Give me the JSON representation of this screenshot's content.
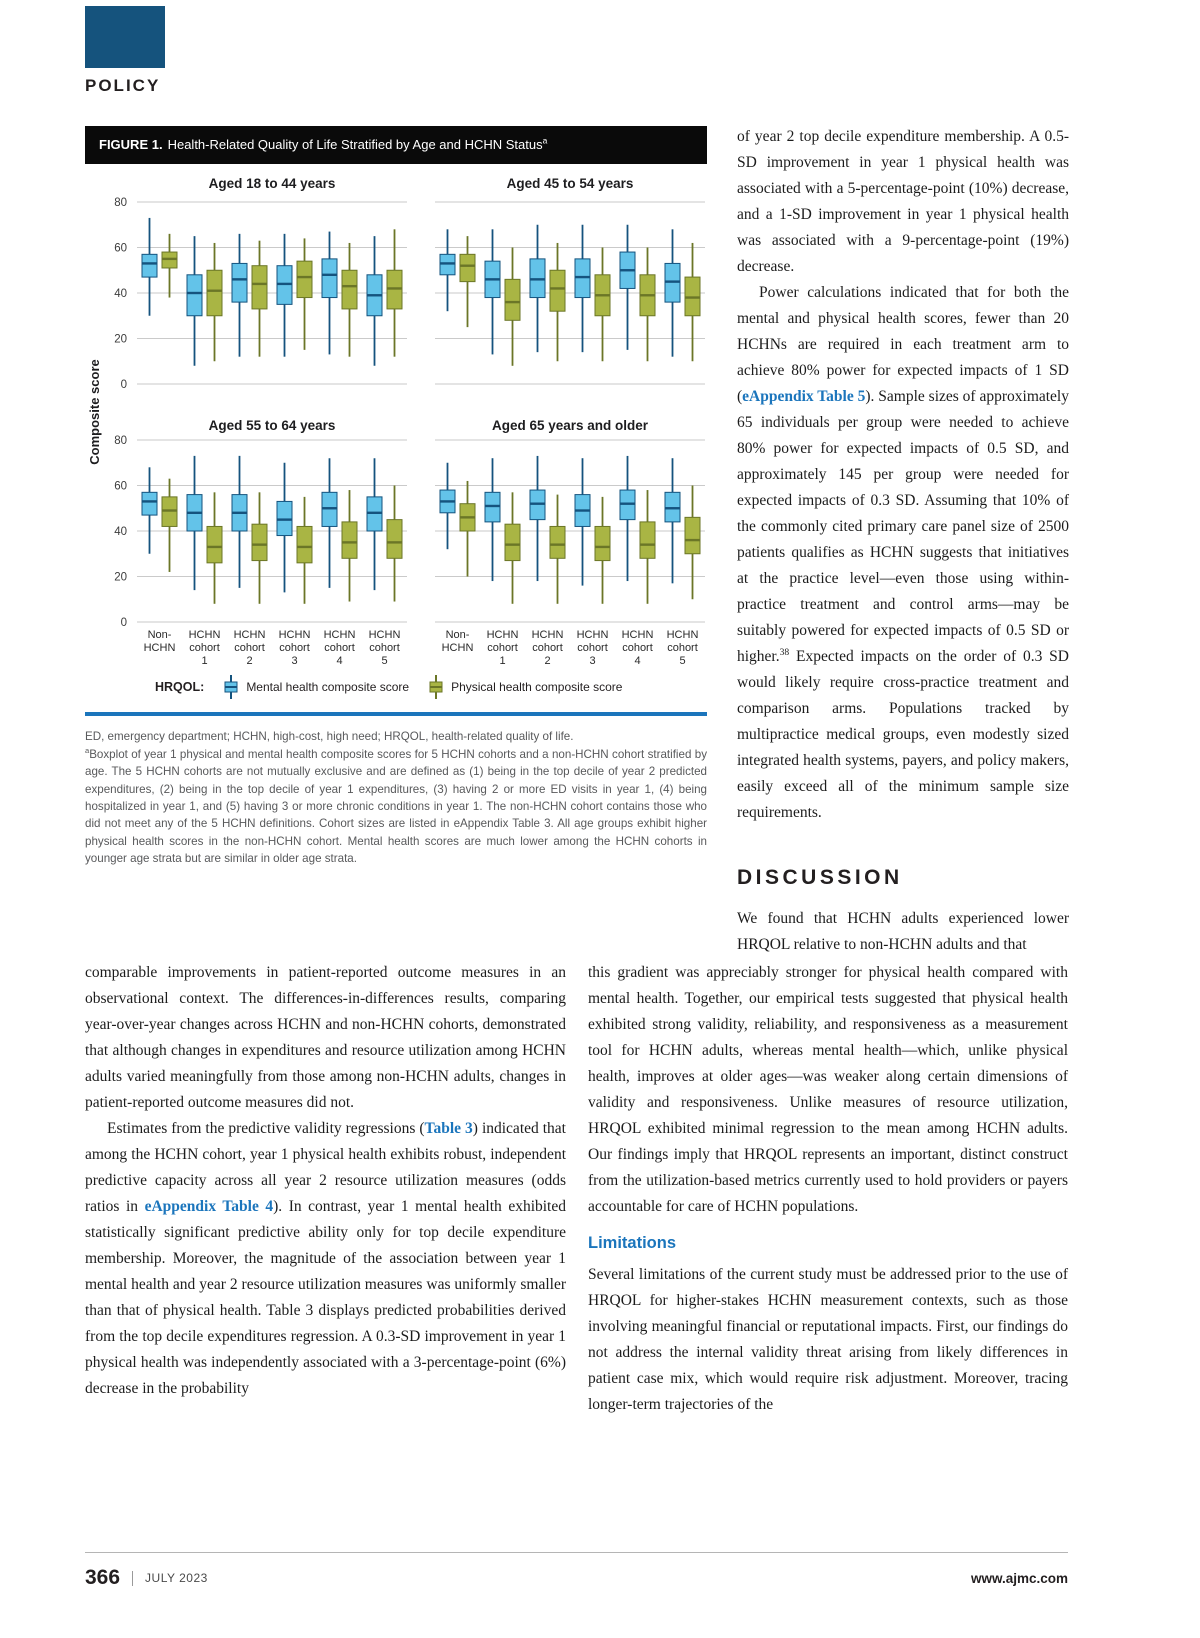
{
  "page": {
    "section_label": "POLICY",
    "footer": {
      "page_number": "366",
      "issue_date": "JULY 2023",
      "website": "www.ajmc.com"
    }
  },
  "figure": {
    "label": "FIGURE 1.",
    "title_segments": [
      {
        "t": "Health-Related Quality of Life Stratified by Age and HCHN Status"
      },
      {
        "t": "a",
        "sup": true
      }
    ],
    "legend": {
      "prefix": "HRQOL:",
      "mental_label": "Mental health composite score",
      "physical_label": "Physical health composite score"
    },
    "caption": {
      "abbreviations": "ED, emergency department; HCHN, high-cost, high need; HRQOL, health-related quality of life.",
      "note_segments": [
        {
          "t": "a",
          "sup": true
        },
        {
          "t": "Boxplot of year 1 physical and mental health composite scores for 5 HCHN cohorts and a non-HCHN cohort stratified by age. The 5 HCHN cohorts are not mutually exclusive and are defined as (1) being in the top decile of year 2 predicted expenditures, (2) being in the top decile of year 1 expenditures, (3) having 2 or more ED visits in year 1, (4) being hospitalized in year 1, and (5) having 3 or more chronic conditions in year 1. The non-HCHN cohort contains those who did not meet any of the 5 HCHN definitions. Cohort sizes are listed in eAppendix Table 3. All age groups exhibit higher physical health scores in the non-HCHN cohort. Mental health scores are much lower among the HCHN cohorts in younger age strata but are similar in older age strata."
        }
      ]
    }
  },
  "chart_data": {
    "type": "boxplot",
    "title": "Health-Related Quality of Life Stratified by Age and HCHN Status",
    "ylabel": "Composite score",
    "xlabel": "",
    "ylim": [
      0,
      80
    ],
    "yticks": [
      0,
      20,
      40,
      60,
      80
    ],
    "grid": true,
    "legend_position": "bottom",
    "stats_order": [
      "min",
      "q1",
      "median",
      "q3",
      "max"
    ],
    "series": [
      "Mental health composite score",
      "Physical health composite score"
    ],
    "colors": {
      "mental": {
        "fill": "#63C3E9",
        "dark": "#15537E"
      },
      "physical": {
        "fill": "#A9B544",
        "dark": "#6B7627"
      }
    },
    "categories": [
      "Non-HCHN",
      "HCHN cohort 1",
      "HCHN cohort 2",
      "HCHN cohort 3",
      "HCHN cohort 4",
      "HCHN cohort 5"
    ],
    "category_label_lines": [
      [
        "Non-",
        "HCHN"
      ],
      [
        "HCHN",
        "cohort",
        "1"
      ],
      [
        "HCHN",
        "cohort",
        "2"
      ],
      [
        "HCHN",
        "cohort",
        "3"
      ],
      [
        "HCHN",
        "cohort",
        "4"
      ],
      [
        "HCHN",
        "cohort",
        "5"
      ]
    ],
    "panels": [
      {
        "title": "Aged 18 to 44 years",
        "mental": [
          [
            30,
            47,
            53,
            57,
            73
          ],
          [
            8,
            30,
            40,
            48,
            65
          ],
          [
            12,
            36,
            46,
            53,
            66
          ],
          [
            12,
            35,
            44,
            52,
            66
          ],
          [
            13,
            38,
            48,
            55,
            67
          ],
          [
            8,
            30,
            39,
            48,
            65
          ]
        ],
        "physical": [
          [
            38,
            51,
            55,
            58,
            66
          ],
          [
            10,
            30,
            41,
            50,
            62
          ],
          [
            12,
            33,
            44,
            52,
            63
          ],
          [
            15,
            38,
            47,
            54,
            64
          ],
          [
            12,
            33,
            43,
            50,
            62
          ],
          [
            12,
            33,
            42,
            50,
            68
          ]
        ]
      },
      {
        "title": "Aged 45 to 54 years",
        "mental": [
          [
            32,
            48,
            53,
            57,
            68
          ],
          [
            13,
            38,
            46,
            54,
            68
          ],
          [
            14,
            38,
            46,
            55,
            70
          ],
          [
            14,
            38,
            47,
            55,
            70
          ],
          [
            15,
            42,
            50,
            58,
            70
          ],
          [
            12,
            36,
            45,
            53,
            68
          ]
        ],
        "physical": [
          [
            25,
            45,
            52,
            57,
            65
          ],
          [
            8,
            28,
            36,
            46,
            60
          ],
          [
            10,
            32,
            42,
            50,
            62
          ],
          [
            10,
            30,
            39,
            48,
            60
          ],
          [
            10,
            30,
            39,
            48,
            60
          ],
          [
            10,
            30,
            38,
            47,
            62
          ]
        ]
      },
      {
        "title": "Aged 55 to 64 years",
        "mental": [
          [
            30,
            47,
            53,
            57,
            68
          ],
          [
            14,
            40,
            48,
            56,
            73
          ],
          [
            15,
            40,
            48,
            56,
            73
          ],
          [
            13,
            38,
            45,
            53,
            70
          ],
          [
            15,
            42,
            50,
            57,
            72
          ],
          [
            14,
            40,
            48,
            55,
            72
          ]
        ],
        "physical": [
          [
            22,
            42,
            49,
            55,
            63
          ],
          [
            8,
            26,
            33,
            42,
            57
          ],
          [
            8,
            27,
            34,
            43,
            57
          ],
          [
            8,
            26,
            33,
            42,
            55
          ],
          [
            9,
            28,
            35,
            44,
            58
          ],
          [
            9,
            28,
            35,
            45,
            60
          ]
        ]
      },
      {
        "title": "Aged 65 years and older",
        "mental": [
          [
            32,
            48,
            53,
            58,
            70
          ],
          [
            18,
            44,
            51,
            57,
            72
          ],
          [
            18,
            45,
            52,
            58,
            73
          ],
          [
            16,
            42,
            49,
            56,
            72
          ],
          [
            18,
            45,
            52,
            58,
            73
          ],
          [
            17,
            44,
            50,
            57,
            72
          ]
        ],
        "physical": [
          [
            20,
            40,
            46,
            52,
            62
          ],
          [
            8,
            27,
            34,
            43,
            57
          ],
          [
            8,
            28,
            34,
            42,
            56
          ],
          [
            8,
            27,
            33,
            42,
            55
          ],
          [
            8,
            28,
            34,
            44,
            58
          ],
          [
            10,
            30,
            36,
            46,
            60
          ]
        ]
      }
    ]
  },
  "text": {
    "discussion_heading": "DISCUSSION",
    "limitations_heading": "Limitations",
    "top_right": {
      "p1": "of year 2 top decile expenditure membership. A 0.5-SD improvement in year 1 physical health was associated with a 5-percentage-point (10%) decrease, and a 1-SD improvement in year 1 physical health was associated with a 9-percentage-point (19%) decrease.",
      "p2_segments": [
        {
          "t": "Power calculations indicated that for both the mental and physical health scores, fewer than 20 HCHNs are required in each treatment arm to achieve 80% power for expected impacts of 1 SD ("
        },
        {
          "t": "eAppendix Table 5",
          "link": true
        },
        {
          "t": "). Sample sizes of approximately 65 individuals per group were needed to achieve 80% power for expected impacts of 0.5 SD, and approximately 145 per group were needed for expected impacts of 0.3 SD. Assuming that 10% of the commonly cited primary care panel size of 2500 patients qualifies as HCHN suggests that initiatives at the practice level—even those using within-practice treatment and control arms—may be suitably powered for expected impacts of 0.5 SD or higher."
        },
        {
          "t": "38",
          "sup": true
        },
        {
          "t": " Expected impacts on the order of 0.3 SD would likely require cross-practice treatment and comparison arms. Populations tracked by multipractice medical groups, even modestly sized integrated health systems, payers, and policy makers, easily exceed all of the minimum sample size requirements."
        }
      ]
    },
    "discussion_intro": "We found that HCHN adults experienced lower HRQOL relative to non-HCHN adults and that",
    "bottom_left": {
      "p1": "comparable improvements in patient-reported outcome measures in an observational context. The differences-in-differences results, comparing year-over-year changes across HCHN and non-HCHN cohorts, demonstrated that although changes in expenditures and resource utilization among HCHN adults varied meaningfully from those among non-HCHN adults, changes in patient-reported outcome measures did not.",
      "p2_segments": [
        {
          "t": "Estimates from the predictive validity regressions ("
        },
        {
          "t": "Table 3",
          "link": true
        },
        {
          "t": ") indicated that among the HCHN cohort, year 1 physical health exhibits robust, independent predictive capacity across all year 2 resource utilization measures (odds ratios in "
        },
        {
          "t": "eAppendix Table 4",
          "link": true
        },
        {
          "t": "). In contrast, year 1 mental health exhibited statistically significant predictive ability only for top decile expenditure membership. Moreover, the magnitude of the association between year 1 mental health and year 2 resource utilization measures was uniformly smaller than that of physical health. Table 3 displays predicted probabilities derived from the top decile expenditures regression. A 0.3-SD improvement in year 1 physical health was independently associated with a 3-percentage-point (6%) decrease in the probability"
        }
      ]
    },
    "bottom_right": {
      "p1": "this gradient was appreciably stronger for physical health compared with mental health. Together, our empirical tests suggested that physical health exhibited strong validity, reliability, and responsiveness as a measurement tool for HCHN adults, whereas mental health—which, unlike physical health, improves at older ages—was weaker along certain dimensions of validity and responsiveness. Unlike measures of resource utilization, HRQOL exhibited minimal regression to the mean among HCHN adults. Our findings imply that HRQOL represents an important, distinct construct from the utilization-based metrics currently used to hold providers or payers accountable for care of HCHN populations.",
      "p2": "Several limitations of the current study must be addressed prior to the use of HRQOL for higher-stakes HCHN measurement contexts, such as those involving meaningful financial or reputational impacts. First, our findings do not address the internal validity threat arising from likely differences in patient case mix, which would require risk adjustment. Moreover, tracing longer-term trajectories of the"
    }
  }
}
